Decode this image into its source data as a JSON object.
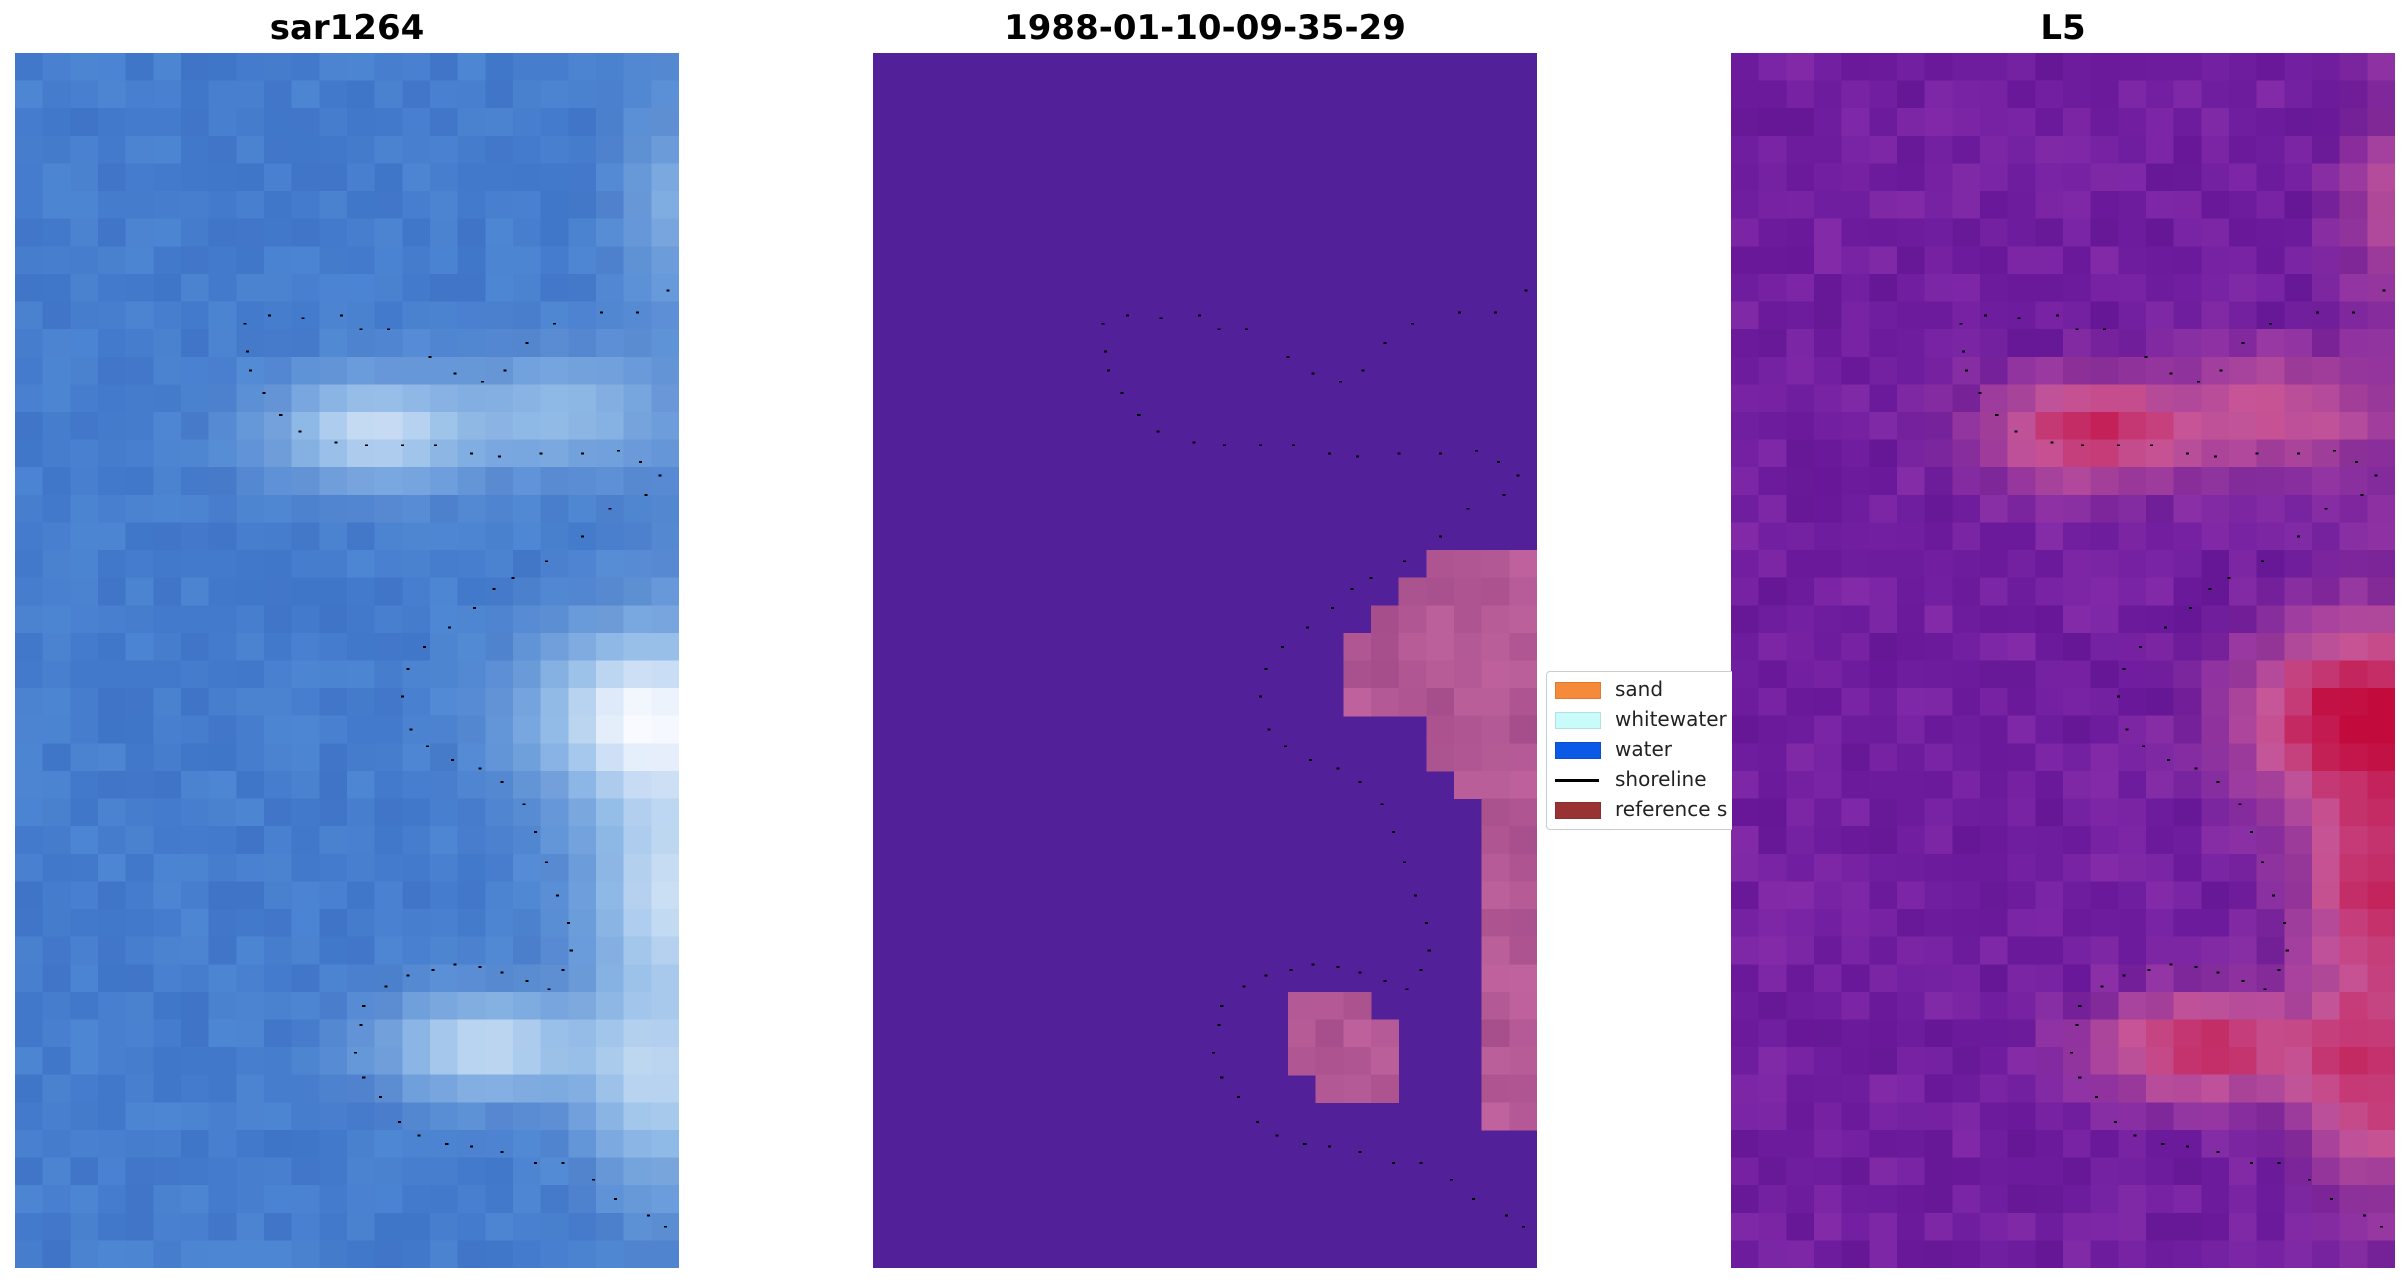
{
  "panels": [
    {
      "title": "sar1264",
      "kind": "rgb-image"
    },
    {
      "title": "1988-01-10-09-35-29",
      "kind": "classification"
    },
    {
      "title": "L5",
      "kind": "water-index"
    }
  ],
  "legend": {
    "items": [
      {
        "label": "sand",
        "color": "#f58a3a",
        "type": "patch"
      },
      {
        "label": "whitewater",
        "color": "#c8fbfa",
        "type": "patch"
      },
      {
        "label": "water",
        "color": "#0b5ae6",
        "type": "patch"
      },
      {
        "label": "shoreline",
        "color": "#000000",
        "type": "line"
      },
      {
        "label": "reference s",
        "color": "#993333",
        "type": "patch"
      }
    ]
  },
  "colors": {
    "classification_background": "#52219a",
    "classification_overlay": "#c06695",
    "shoreline_dots": "#000000"
  }
}
